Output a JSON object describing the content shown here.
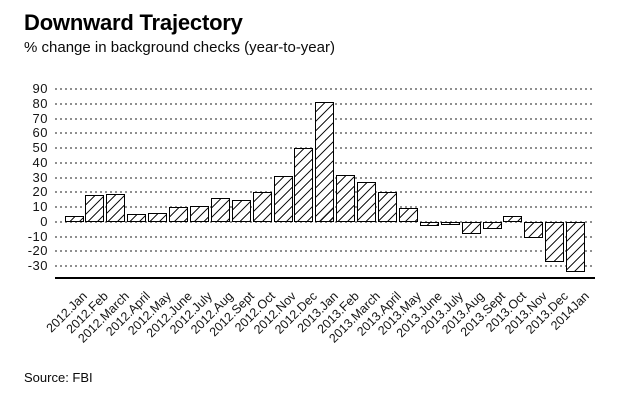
{
  "header": {
    "title": "Downward Trajectory",
    "subtitle": "% change in background checks (year-to-year)"
  },
  "footer": {
    "source": "Source: FBI"
  },
  "colors": {
    "background": "#ffffff",
    "text": "#000000",
    "tick_text": "#141414",
    "gridline_dots": "#8f8f8f",
    "bar_fill": "#ffffff",
    "bar_outline": "#000000",
    "hatch": "#1a1a1a"
  },
  "chart_data": {
    "type": "bar",
    "title": "Downward Trajectory",
    "subtitle": "% change in background checks (year-to-year)",
    "xlabel": "",
    "ylabel": "",
    "categories": [
      "2012.Jan",
      "2012.Feb",
      "2012.March",
      "2012.April",
      "2012.May",
      "2012.June",
      "2012.July",
      "2012.Aug",
      "2012.Sept",
      "2012.Oct",
      "2012.Nov",
      "2012.Dec",
      "2013.Jan",
      "2013.Feb",
      "2013.March",
      "2013.April",
      "2013.May",
      "2013.June",
      "2013.July",
      "2013.Aug",
      "2013.Sept",
      "2013.Oct",
      "2013.Nov",
      "2013.Dec",
      "2014Jan"
    ],
    "values": [
      4,
      18,
      19,
      5,
      6,
      10,
      11,
      16,
      15,
      20,
      31,
      50,
      81,
      32,
      27,
      20,
      9,
      -3,
      -1,
      -8,
      -5,
      4,
      -11,
      -27,
      -34
    ],
    "yticks": [
      90,
      80,
      70,
      60,
      50,
      40,
      30,
      20,
      10,
      0,
      -10,
      -20,
      -30
    ],
    "ylim": [
      -30,
      90
    ],
    "grid": "horizontal dotted gray lines at every 10",
    "legend": "none",
    "bar_style": "white bars, black outline, diagonal / hatching",
    "source": "Source: FBI"
  }
}
